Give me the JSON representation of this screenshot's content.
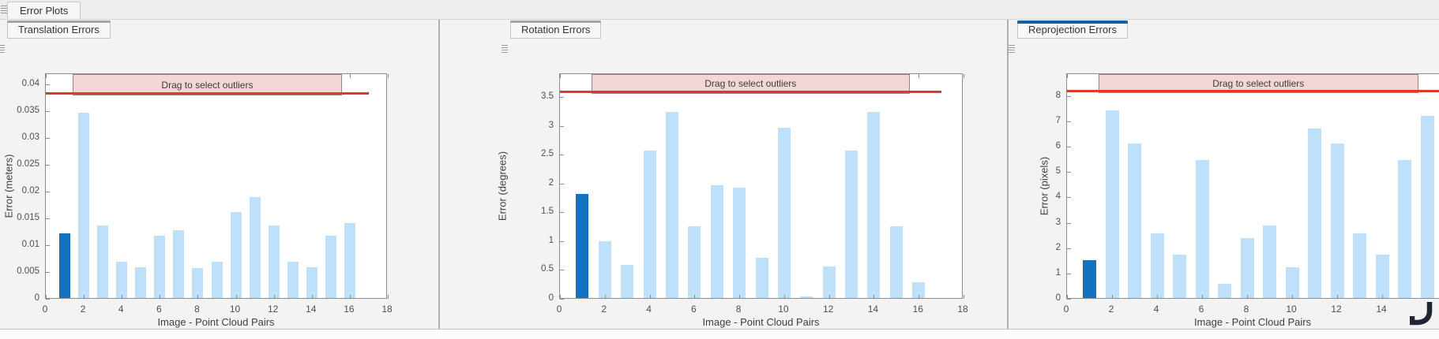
{
  "app": {
    "main_tab_label": "Error Plots"
  },
  "colors": {
    "bar_light": "#BEE0FB",
    "bar_selected": "#1572BE",
    "threshold_line": "#E0392B",
    "outlier_box_fill": "#F3D7D7",
    "outlier_box_border": "#A08080",
    "active_tab_accent": "#1160A7",
    "inactive_tab_accent": "#A6A6A6",
    "cursor_icon": "#202636"
  },
  "panels": [
    {
      "tab_label": "Translation Errors",
      "active": false,
      "chart_data": {
        "type": "bar",
        "title": "",
        "xlabel": "Image - Point Cloud Pairs",
        "ylabel": "Error (meters)",
        "x": [
          1,
          2,
          3,
          4,
          5,
          6,
          7,
          8,
          9,
          10,
          11,
          12,
          13,
          14,
          15,
          16
        ],
        "values": [
          0.012,
          0.0345,
          0.0135,
          0.0067,
          0.0058,
          0.0116,
          0.0126,
          0.0056,
          0.0067,
          0.016,
          0.0188,
          0.0135,
          0.0067,
          0.0058,
          0.0116,
          0.014
        ],
        "selected_x": 1,
        "threshold_value": 0.038,
        "threshold_x_range": [
          0,
          17
        ],
        "annotation_label": "Drag to select outliers",
        "annotation_x_range": [
          1.4,
          15.6
        ],
        "xlim": [
          0,
          18
        ],
        "ylim": [
          0,
          0.042
        ],
        "xticks": [
          0,
          2,
          4,
          6,
          8,
          10,
          12,
          14,
          16,
          18
        ],
        "yticks": [
          0,
          0.005,
          0.01,
          0.015,
          0.02,
          0.025,
          0.03,
          0.035,
          0.04
        ],
        "ytick_labels": [
          "0",
          "0.005",
          "0.01",
          "0.015",
          "0.02",
          "0.025",
          "0.03",
          "0.035",
          "0.04"
        ],
        "grid": false,
        "legend": null
      }
    },
    {
      "tab_label": "Rotation Errors",
      "active": false,
      "chart_data": {
        "type": "bar",
        "title": "",
        "xlabel": "Image - Point Cloud Pairs",
        "ylabel": "Error (degrees)",
        "x": [
          1,
          2,
          3,
          4,
          5,
          6,
          7,
          8,
          9,
          10,
          11,
          12,
          13,
          14,
          15,
          16
        ],
        "values": [
          1.8,
          0.98,
          0.57,
          2.56,
          3.22,
          1.25,
          1.95,
          1.92,
          0.7,
          2.96,
          0.03,
          0.55,
          2.56,
          3.22,
          1.25,
          0.27
        ],
        "selected_x": 1,
        "threshold_value": 3.57,
        "threshold_x_range": [
          0,
          17
        ],
        "annotation_label": "Drag to select outliers",
        "annotation_x_range": [
          1.4,
          15.6
        ],
        "xlim": [
          0,
          18
        ],
        "ylim": [
          0,
          3.91
        ],
        "xticks": [
          0,
          2,
          4,
          6,
          8,
          10,
          12,
          14,
          16,
          18
        ],
        "yticks": [
          0,
          0.5,
          1,
          1.5,
          2,
          2.5,
          3,
          3.5
        ],
        "ytick_labels": [
          "0",
          "0.5",
          "1",
          "1.5",
          "2",
          "2.5",
          "3",
          "3.5"
        ],
        "grid": false,
        "legend": null
      }
    },
    {
      "tab_label": "Reprojection Errors",
      "active": true,
      "chart_data": {
        "type": "bar",
        "title": "",
        "xlabel": "Image - Point Cloud Pairs",
        "ylabel": "Error (pixels)",
        "x": [
          1,
          2,
          3,
          4,
          5,
          6,
          7,
          8,
          9,
          10,
          11,
          12,
          13,
          14,
          15,
          16
        ],
        "values": [
          1.5,
          7.4,
          6.1,
          2.55,
          1.7,
          5.45,
          0.55,
          2.35,
          2.85,
          1.2,
          6.7,
          6.1,
          2.55,
          1.7,
          5.45,
          7.2
        ],
        "selected_x": 1,
        "threshold_value": 8.15,
        "threshold_x_range": [
          0,
          17
        ],
        "annotation_label": "Drag to select outliers",
        "annotation_x_range": [
          1.4,
          15.6
        ],
        "xlim": [
          0,
          16.56
        ],
        "ylim": [
          0,
          8.9
        ],
        "xticks": [
          0,
          2,
          4,
          6,
          8,
          10,
          12,
          14
        ],
        "yticks": [
          0,
          1,
          2,
          3,
          4,
          5,
          6,
          7,
          8
        ],
        "ytick_labels": [
          "0",
          "1",
          "2",
          "3",
          "4",
          "5",
          "6",
          "7",
          "8"
        ],
        "clipped_right": true,
        "grid": false,
        "legend": null
      }
    }
  ]
}
